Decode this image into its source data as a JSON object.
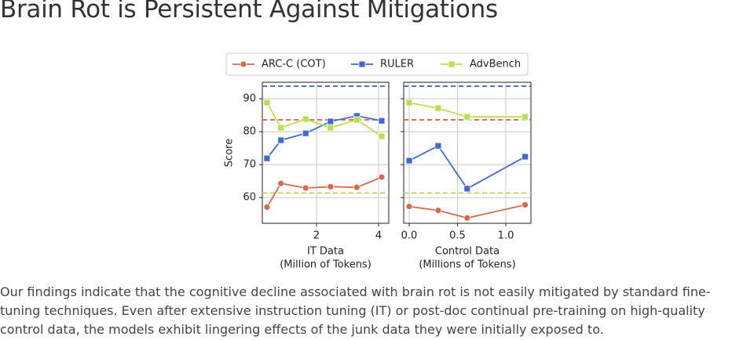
{
  "title": "Brain Rot is Persistent Against Mitigations",
  "paragraph": "Our findings indicate that the cognitive decline associated with brain rot is not easily mitigated by standard fine-tuning techniques. Even after extensive instruction tuning (IT) or post-doc continual pre-training on high-quality control data, the models exhibit lingering effects of the junk data they were initially exposed to.",
  "chart_data": [
    {
      "type": "line",
      "ylabel": "Score",
      "xlabel": [
        "IT Data",
        "(Million of Tokens)"
      ],
      "x": [
        0.4,
        0.85,
        1.65,
        2.45,
        3.3,
        4.1
      ],
      "xlim": [
        0.25,
        4.33
      ],
      "xticks": [
        2,
        4
      ],
      "ylim": [
        52.2,
        95
      ],
      "yticks": [
        60,
        70,
        80,
        90
      ],
      "grid": true,
      "series": [
        {
          "name": "ARC-C (COT)",
          "color": "#d9694a",
          "marker": "circle",
          "baseline": 83.6,
          "values": [
            57.1,
            64.3,
            62.9,
            63.3,
            63.1,
            66.2
          ]
        },
        {
          "name": "RULER",
          "color": "#4169d6",
          "marker": "square",
          "baseline": 93.8,
          "values": [
            71.9,
            77.4,
            79.5,
            83.1,
            84.8,
            83.3
          ]
        },
        {
          "name": "AdvBench",
          "color": "#b8e04a",
          "marker": "square",
          "baseline": 61.4,
          "values": [
            88.8,
            81.2,
            83.8,
            81.2,
            83.6,
            78.6
          ]
        }
      ]
    },
    {
      "type": "line",
      "xlabel": [
        "Control Data",
        "(Millions of Tokens)"
      ],
      "x": [
        0,
        0.3,
        0.6,
        1.2
      ],
      "xlim": [
        -0.057,
        1.26
      ],
      "xticks": [
        {
          "value": 0,
          "label": "0.0"
        },
        0.5,
        {
          "value": 1,
          "label": "1.0"
        }
      ],
      "ylim": [
        52.2,
        95
      ],
      "yticks": [
        60,
        70,
        80,
        90
      ],
      "grid": true,
      "series": [
        {
          "color": "#d9694a",
          "marker": "circle",
          "baseline": 83.6,
          "values": [
            57.3,
            56.1,
            53.8,
            57.8
          ]
        },
        {
          "color": "#4169d6",
          "marker": "square",
          "baseline": 93.8,
          "values": [
            71.2,
            75.7,
            62.7,
            72.4
          ]
        },
        {
          "color": "#b8e04a",
          "marker": "square",
          "baseline": 61.4,
          "values": [
            88.8,
            87.1,
            84.5,
            84.5
          ]
        }
      ]
    }
  ]
}
